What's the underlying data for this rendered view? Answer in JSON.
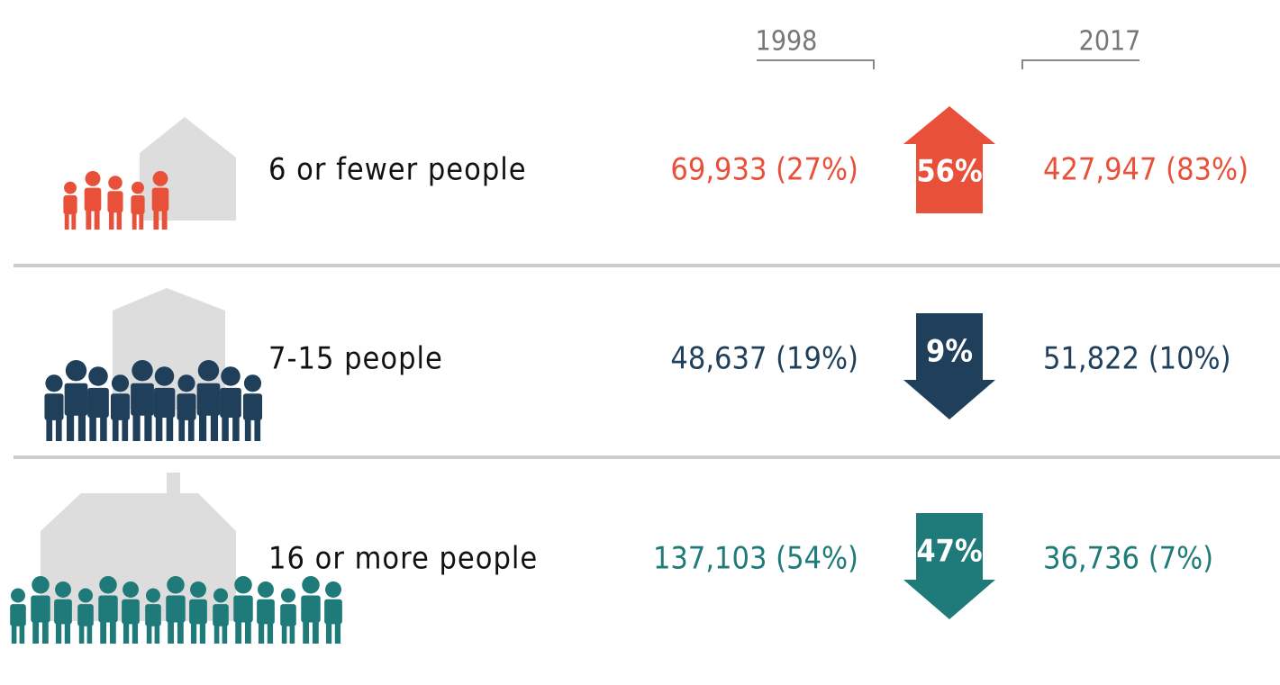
{
  "columns": [
    "1998",
    "2017"
  ],
  "rows": [
    {
      "label": "6 or fewer people",
      "value_1998": "69,933 (27%)",
      "change": "56%",
      "value_2017": "427,947 (83%)",
      "direction": "up",
      "color": "#e8503a"
    },
    {
      "label": "7-15 people",
      "value_1998": "48,637 (19%)",
      "change": "9%",
      "value_2017": "51,822 (10%)",
      "direction": "down",
      "color": "#1f3f5b"
    },
    {
      "label": "16 or more people",
      "value_1998": "137,103 (54%)",
      "change": "47%",
      "value_2017": "36,736 (7%)",
      "direction": "down",
      "color": "#1f7a7a"
    }
  ]
}
